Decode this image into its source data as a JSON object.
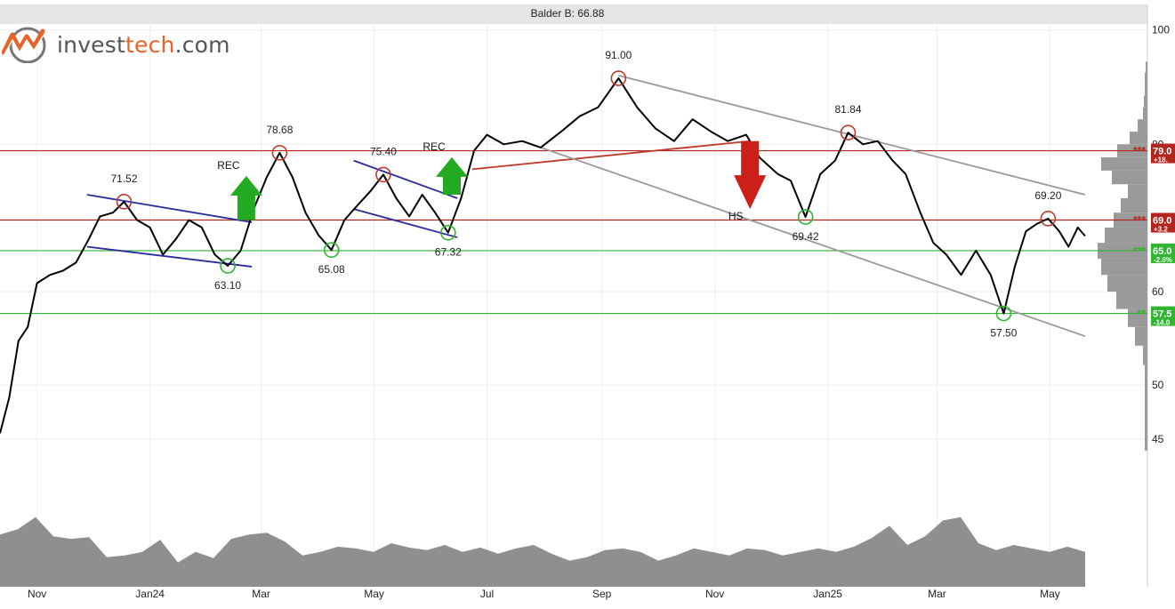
{
  "logo": {
    "name_part1": "invest",
    "name_part2": "tech",
    "name_part3": ".com",
    "brand_color": "#e8632a",
    "text_color": "#555555"
  },
  "chart_data": {
    "type": "line",
    "title": "Balder B: 66.88",
    "y_scale": "log",
    "ylim": [
      43,
      101
    ],
    "y_ticks": [
      100,
      80,
      60,
      50,
      45
    ],
    "x_start": "2023-10-12",
    "x_end": "2025-05-20",
    "x_ticks": [
      {
        "label": "Nov",
        "date": "2023-11-01"
      },
      {
        "label": "Jan24",
        "date": "2024-01-01"
      },
      {
        "label": "Mar",
        "date": "2024-03-01"
      },
      {
        "label": "May",
        "date": "2024-05-01"
      },
      {
        "label": "Jul",
        "date": "2024-07-01"
      },
      {
        "label": "Sep",
        "date": "2024-09-01"
      },
      {
        "label": "Nov",
        "date": "2024-11-01"
      },
      {
        "label": "Jan25",
        "date": "2025-01-01"
      },
      {
        "label": "Mar",
        "date": "2025-03-01"
      },
      {
        "label": "May",
        "date": "2025-05-01"
      }
    ],
    "grid": true,
    "price_series": [
      {
        "x": "2023-10-12",
        "y": 45.5
      },
      {
        "x": "2023-10-17",
        "y": 48.8
      },
      {
        "x": "2023-10-22",
        "y": 54.5
      },
      {
        "x": "2023-10-27",
        "y": 56.0
      },
      {
        "x": "2023-11-01",
        "y": 61.0
      },
      {
        "x": "2023-11-08",
        "y": 62.0
      },
      {
        "x": "2023-11-15",
        "y": 62.5
      },
      {
        "x": "2023-11-22",
        "y": 63.5
      },
      {
        "x": "2023-11-29",
        "y": 66.5
      },
      {
        "x": "2023-12-05",
        "y": 69.5
      },
      {
        "x": "2023-12-12",
        "y": 70.0
      },
      {
        "x": "2023-12-18",
        "y": 71.52
      },
      {
        "x": "2023-12-25",
        "y": 69.0
      },
      {
        "x": "2024-01-01",
        "y": 68.0
      },
      {
        "x": "2024-01-08",
        "y": 64.5
      },
      {
        "x": "2024-01-15",
        "y": 66.5
      },
      {
        "x": "2024-01-22",
        "y": 69.0
      },
      {
        "x": "2024-01-29",
        "y": 68.0
      },
      {
        "x": "2024-02-05",
        "y": 64.5
      },
      {
        "x": "2024-02-12",
        "y": 63.1
      },
      {
        "x": "2024-02-19",
        "y": 65.0
      },
      {
        "x": "2024-02-26",
        "y": 70.5
      },
      {
        "x": "2024-03-04",
        "y": 75.0
      },
      {
        "x": "2024-03-11",
        "y": 78.68
      },
      {
        "x": "2024-03-18",
        "y": 75.0
      },
      {
        "x": "2024-03-25",
        "y": 70.0
      },
      {
        "x": "2024-04-01",
        "y": 67.0
      },
      {
        "x": "2024-04-08",
        "y": 65.08
      },
      {
        "x": "2024-04-15",
        "y": 69.0
      },
      {
        "x": "2024-04-22",
        "y": 71.0
      },
      {
        "x": "2024-04-29",
        "y": 73.0
      },
      {
        "x": "2024-05-06",
        "y": 75.4
      },
      {
        "x": "2024-05-13",
        "y": 72.0
      },
      {
        "x": "2024-05-20",
        "y": 69.5
      },
      {
        "x": "2024-05-27",
        "y": 72.5
      },
      {
        "x": "2024-06-03",
        "y": 70.0
      },
      {
        "x": "2024-06-10",
        "y": 67.32
      },
      {
        "x": "2024-06-17",
        "y": 72.0
      },
      {
        "x": "2024-06-24",
        "y": 79.0
      },
      {
        "x": "2024-07-01",
        "y": 81.5
      },
      {
        "x": "2024-07-10",
        "y": 80.0
      },
      {
        "x": "2024-07-20",
        "y": 80.5
      },
      {
        "x": "2024-07-30",
        "y": 79.5
      },
      {
        "x": "2024-08-10",
        "y": 82.0
      },
      {
        "x": "2024-08-20",
        "y": 84.5
      },
      {
        "x": "2024-08-30",
        "y": 86.0
      },
      {
        "x": "2024-09-10",
        "y": 91.0
      },
      {
        "x": "2024-09-20",
        "y": 86.0
      },
      {
        "x": "2024-09-30",
        "y": 82.5
      },
      {
        "x": "2024-10-10",
        "y": 80.5
      },
      {
        "x": "2024-10-20",
        "y": 84.0
      },
      {
        "x": "2024-10-30",
        "y": 82.0
      },
      {
        "x": "2024-11-08",
        "y": 80.5
      },
      {
        "x": "2024-11-18",
        "y": 81.5
      },
      {
        "x": "2024-11-25",
        "y": 78.0
      },
      {
        "x": "2024-12-05",
        "y": 75.5
      },
      {
        "x": "2024-12-12",
        "y": 74.5
      },
      {
        "x": "2024-12-20",
        "y": 69.42
      },
      {
        "x": "2024-12-28",
        "y": 75.5
      },
      {
        "x": "2025-01-05",
        "y": 77.5
      },
      {
        "x": "2025-01-12",
        "y": 81.84
      },
      {
        "x": "2025-01-20",
        "y": 80.0
      },
      {
        "x": "2025-01-28",
        "y": 80.5
      },
      {
        "x": "2025-02-05",
        "y": 77.5
      },
      {
        "x": "2025-02-12",
        "y": 75.5
      },
      {
        "x": "2025-02-20",
        "y": 70.0
      },
      {
        "x": "2025-02-27",
        "y": 66.0
      },
      {
        "x": "2025-03-06",
        "y": 64.5
      },
      {
        "x": "2025-03-14",
        "y": 62.0
      },
      {
        "x": "2025-03-22",
        "y": 65.0
      },
      {
        "x": "2025-03-30",
        "y": 62.0
      },
      {
        "x": "2025-04-06",
        "y": 57.5
      },
      {
        "x": "2025-04-12",
        "y": 63.0
      },
      {
        "x": "2025-04-18",
        "y": 67.5
      },
      {
        "x": "2025-04-24",
        "y": 68.5
      },
      {
        "x": "2025-04-30",
        "y": 69.2
      },
      {
        "x": "2025-05-06",
        "y": 67.5
      },
      {
        "x": "2025-05-11",
        "y": 65.5
      },
      {
        "x": "2025-05-16",
        "y": 68.0
      },
      {
        "x": "2025-05-20",
        "y": 66.88
      }
    ],
    "horizontal_levels": [
      {
        "value": 79.0,
        "type": "resistance",
        "label": "79.0",
        "change": "+18.",
        "stars": "***"
      },
      {
        "value": 69.0,
        "type": "resistance",
        "label": "69.0",
        "change": "+3.2",
        "stars": "***"
      },
      {
        "value": 65.0,
        "type": "support",
        "label": "65.0",
        "change": "-2.8%",
        "stars": "***"
      },
      {
        "value": 57.5,
        "type": "support",
        "label": "57.5",
        "change": "-14.0",
        "stars": "**"
      }
    ],
    "extrema": [
      {
        "x": "2023-12-18",
        "y": 71.52,
        "kind": "top",
        "label": "71.52"
      },
      {
        "x": "2024-02-12",
        "y": 63.1,
        "kind": "bottom",
        "label": "63.10"
      },
      {
        "x": "2024-03-11",
        "y": 78.68,
        "kind": "top",
        "label": "78.68"
      },
      {
        "x": "2024-04-08",
        "y": 65.08,
        "kind": "bottom",
        "label": "65.08"
      },
      {
        "x": "2024-05-06",
        "y": 75.4,
        "kind": "top",
        "label": "75.40"
      },
      {
        "x": "2024-06-10",
        "y": 67.32,
        "kind": "bottom",
        "label": "67.32"
      },
      {
        "x": "2024-09-10",
        "y": 91.0,
        "kind": "top",
        "label": "91.00"
      },
      {
        "x": "2024-12-20",
        "y": 69.42,
        "kind": "bottom",
        "label": "69.42"
      },
      {
        "x": "2025-01-12",
        "y": 81.84,
        "kind": "top",
        "label": "81.84"
      },
      {
        "x": "2025-04-06",
        "y": 57.5,
        "kind": "bottom",
        "label": "57.50"
      },
      {
        "x": "2025-04-30",
        "y": 69.2,
        "kind": "top",
        "label": "69.20"
      }
    ],
    "trend_lines": [
      {
        "color": "#2a2aa0",
        "from": {
          "x": "2023-11-28",
          "y": 72.5
        },
        "to": {
          "x": "2024-02-25",
          "y": 68.7
        }
      },
      {
        "color": "#2a2aa0",
        "from": {
          "x": "2023-11-28",
          "y": 65.5
        },
        "to": {
          "x": "2024-02-25",
          "y": 63.0
        }
      },
      {
        "color": "#2a2aa0",
        "from": {
          "x": "2024-04-20",
          "y": 77.5
        },
        "to": {
          "x": "2024-06-15",
          "y": 72.0
        }
      },
      {
        "color": "#2a2aa0",
        "from": {
          "x": "2024-04-20",
          "y": 70.5
        },
        "to": {
          "x": "2024-06-15",
          "y": 66.7
        }
      },
      {
        "color": "#c0392b",
        "from": {
          "x": "2024-06-23",
          "y": 76.2
        },
        "to": {
          "x": "2024-11-20",
          "y": 80.5
        }
      },
      {
        "color": "#999999",
        "from": {
          "x": "2024-09-10",
          "y": 91.5
        },
        "to": {
          "x": "2025-05-20",
          "y": 72.5
        }
      },
      {
        "color": "#999999",
        "from": {
          "x": "2024-07-20",
          "y": 80.5
        },
        "to": {
          "x": "2025-05-20",
          "y": 55.0
        }
      }
    ],
    "signals": [
      {
        "label": "REC",
        "date": "2024-02-22",
        "direction": "up",
        "base": 69.0,
        "tip": 75.2,
        "color": "#22aa22"
      },
      {
        "label": "REC",
        "date": "2024-06-12",
        "direction": "up",
        "base": 72.5,
        "tip": 78.0,
        "color": "#22aa22"
      },
      {
        "label": "HS",
        "date": "2024-11-20",
        "direction": "down",
        "base": 80.5,
        "tip": 70.5,
        "color": "#cc1f1a"
      }
    ],
    "volume_profile": [
      {
        "price": 94,
        "w": 2
      },
      {
        "price": 92,
        "w": 3
      },
      {
        "price": 90,
        "w": 3
      },
      {
        "price": 88,
        "w": 4
      },
      {
        "price": 86,
        "w": 5
      },
      {
        "price": 84,
        "w": 11
      },
      {
        "price": 82,
        "w": 20
      },
      {
        "price": 80,
        "w": 34
      },
      {
        "price": 78,
        "w": 52
      },
      {
        "price": 76,
        "w": 40
      },
      {
        "price": 74,
        "w": 22
      },
      {
        "price": 72,
        "w": 30
      },
      {
        "price": 70,
        "w": 38
      },
      {
        "price": 68,
        "w": 48
      },
      {
        "price": 66,
        "w": 56
      },
      {
        "price": 64,
        "w": 52
      },
      {
        "price": 62,
        "w": 45
      },
      {
        "price": 60,
        "w": 35
      },
      {
        "price": 58,
        "w": 22
      },
      {
        "price": 56,
        "w": 14
      },
      {
        "price": 54,
        "w": 5
      },
      {
        "price": 52,
        "w": 3
      },
      {
        "price": 50,
        "w": 3
      },
      {
        "price": 48,
        "w": 3
      },
      {
        "price": 46,
        "w": 3
      },
      {
        "price": 44,
        "w": 2
      }
    ],
    "volume_series": [
      0.6,
      0.66,
      0.8,
      0.58,
      0.55,
      0.57,
      0.34,
      0.36,
      0.4,
      0.54,
      0.28,
      0.4,
      0.33,
      0.55,
      0.6,
      0.62,
      0.52,
      0.36,
      0.4,
      0.46,
      0.44,
      0.4,
      0.5,
      0.45,
      0.42,
      0.48,
      0.4,
      0.45,
      0.38,
      0.44,
      0.48,
      0.38,
      0.3,
      0.34,
      0.42,
      0.44,
      0.4,
      0.3,
      0.36,
      0.44,
      0.4,
      0.36,
      0.44,
      0.42,
      0.36,
      0.4,
      0.44,
      0.4,
      0.46,
      0.56,
      0.7,
      0.48,
      0.58,
      0.76,
      0.8,
      0.5,
      0.42,
      0.48,
      0.44,
      0.4,
      0.46,
      0.4
    ]
  }
}
